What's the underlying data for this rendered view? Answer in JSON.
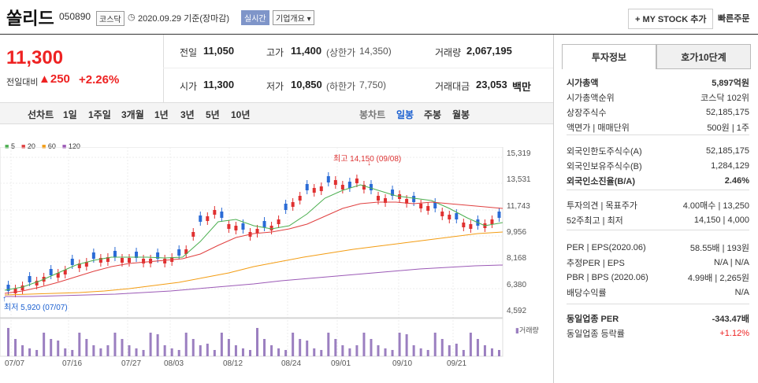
{
  "header": {
    "title": "쏠리드",
    "code": "050890",
    "market": "코스닥",
    "date": "2020.09.29 기준(장마감)",
    "realtime": "실시간",
    "overview": "기업개요",
    "add_btn": "+ MY STOCK 추가",
    "quick_btn": "빠른주문"
  },
  "price": {
    "current": "11,300",
    "change_label": "전일대비",
    "change": "250",
    "pct": "+2.26%"
  },
  "quote": {
    "prev_l": "전일",
    "prev": "11,050",
    "high_l": "고가",
    "high": "11,400",
    "upper_l": "(상한가",
    "upper": "14,350)",
    "vol_l": "거래량",
    "vol": "2,067,195",
    "open_l": "시가",
    "open": "11,300",
    "low_l": "저가",
    "low": "10,850",
    "lower_l": "(하한가",
    "lower": "7,750)",
    "amt_l": "거래대금",
    "amt": "23,053",
    "amt_unit": "백만"
  },
  "toolbar": {
    "line": "선차트",
    "d1": "1일",
    "w1": "1주일",
    "m3": "3개월",
    "y1": "1년",
    "y3": "3년",
    "y5": "5년",
    "y10": "10년",
    "candle": "봉차트",
    "day": "일봉",
    "week": "주봉",
    "month": "월봉"
  },
  "legend": {
    "m5": "5",
    "m20": "20",
    "m60": "60",
    "m120": "120"
  },
  "chart_data": {
    "type": "candlestick",
    "yticks": [
      "15,319",
      "13,531",
      "11,743",
      "9,956",
      "8,168",
      "6,380",
      "4,592"
    ],
    "xticks": [
      "07/07",
      "07/16",
      "07/27",
      "08/03",
      "08/12",
      "08/24",
      "09/01",
      "09/10",
      "09/21"
    ],
    "high_note": "최고 14,150 (09/08)",
    "low_note": "최저 5,920 (07/07)",
    "vol_label": "거래량",
    "ylim": [
      4592,
      15319
    ]
  },
  "side": {
    "tab1": "투자정보",
    "tab2": "호가10단계",
    "rows": [
      {
        "k": "시가총액",
        "v": "5,897억원",
        "bold": true
      },
      {
        "k": "시가총액순위",
        "v": "코스닥 102위"
      },
      {
        "k": "상장주식수",
        "v": "52,185,175"
      },
      {
        "k": "액면가 | 매매단위",
        "v": "500원 | 1주"
      },
      {
        "k": "외국인한도주식수(A)",
        "v": "52,185,175"
      },
      {
        "k": "외국인보유주식수(B)",
        "v": "1,284,129"
      },
      {
        "k": "외국인소진율(B/A)",
        "v": "2.46%",
        "bold": true
      },
      {
        "k": "투자의견 | 목표주가",
        "v": "4.00매수 | 13,250"
      },
      {
        "k": "52주최고 | 최저",
        "v": "14,150 | 4,000"
      },
      {
        "k": "PER | EPS(2020.06)",
        "v": "58.55배 | 193원"
      },
      {
        "k": "추정PER | EPS",
        "v": "N/A | N/A"
      },
      {
        "k": "PBR | BPS (2020.06)",
        "v": "4.99배 | 2,265원"
      },
      {
        "k": "배당수익률",
        "v": "N/A"
      },
      {
        "k": "동일업종 PER",
        "v": "-343.47배",
        "bold": true
      },
      {
        "k": "동일업종 등락률",
        "v": "+1.12%",
        "red": true
      }
    ]
  }
}
